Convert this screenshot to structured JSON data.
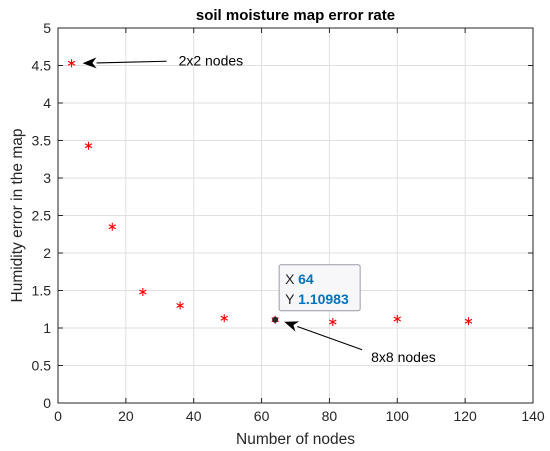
{
  "chart_data": {
    "type": "scatter",
    "title": "soil moisture map error rate",
    "xlabel": "Number of nodes",
    "ylabel": "Humidity error in the map",
    "xlim": [
      0,
      140
    ],
    "ylim": [
      0,
      5
    ],
    "xticks": [
      0,
      20,
      40,
      60,
      80,
      100,
      120,
      140
    ],
    "yticks": [
      0,
      0.5,
      1,
      1.5,
      2,
      2.5,
      3,
      3.5,
      4,
      4.5,
      5
    ],
    "grid": true,
    "marker": "asterisk",
    "series": [
      {
        "color": "#ff0000",
        "x": [
          4,
          9,
          16,
          25,
          36,
          49,
          64,
          81,
          100,
          121
        ],
        "y": [
          4.53,
          3.43,
          2.35,
          1.48,
          1.3,
          1.13,
          1.10983,
          1.08,
          1.12,
          1.09
        ]
      }
    ],
    "annotations": [
      {
        "text": "2x2 nodes",
        "point": [
          4,
          4.53
        ]
      },
      {
        "text": "8x8 nodes",
        "point": [
          64,
          1.10983
        ]
      }
    ],
    "datatip": {
      "x_key": "X",
      "x_value": "64",
      "y_key": "Y",
      "y_value": "1.10983",
      "point": [
        64,
        1.10983
      ],
      "value_color": "#0072bd"
    }
  }
}
